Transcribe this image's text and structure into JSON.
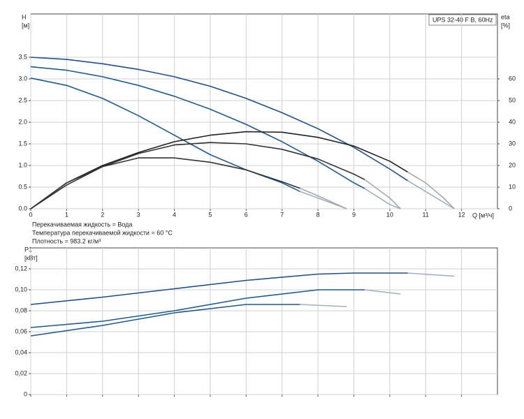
{
  "chart_data": [
    {
      "type": "line",
      "title": "UPS 32-40 F B, 60Hz",
      "ylabel": "H",
      "yunit": "[м]",
      "y2label": "eta",
      "y2unit": "[%]",
      "xlabel": "Q [м³/ч]",
      "notes": [
        "Перекачиваемая жидкость = Вода",
        "Температура перекачиваемой жидкости = 60 °C",
        "Плотность = 983.2 кг/м³"
      ],
      "xlim": [
        0,
        13
      ],
      "xticks": [
        0,
        1,
        2,
        3,
        4,
        5,
        6,
        7,
        8,
        9,
        10,
        11,
        12
      ],
      "ylim": [
        0,
        4.5
      ],
      "yticks": [
        {
          "value": 0,
          "label": "0.0"
        },
        0.5,
        {
          "value": 1,
          "label": "1.0"
        },
        1.5,
        {
          "value": 2,
          "label": "2.0"
        },
        2.5,
        {
          "value": 3,
          "label": "3.0"
        },
        3.5
      ],
      "y2lim": [
        0,
        90
      ],
      "y2ticks": [
        0,
        10,
        20,
        30,
        40,
        50,
        60
      ],
      "grid": true,
      "series": [
        {
          "color": "#1d4f8f",
          "x": [
            0,
            1,
            2,
            3,
            4,
            5,
            6,
            7,
            8,
            9,
            10,
            10.5
          ],
          "values": [
            3.5,
            3.45,
            3.35,
            3.22,
            3.05,
            2.83,
            2.55,
            2.22,
            1.85,
            1.42,
            0.92,
            0.65
          ]
        },
        {
          "color": "#9fb0c4",
          "x": [
            10.5,
            11,
            11.5,
            11.8
          ],
          "values": [
            0.65,
            0.4,
            0.15,
            0
          ]
        },
        {
          "color": "#1d5a95",
          "x": [
            0,
            1,
            2,
            3,
            4,
            5,
            6,
            7,
            8,
            9,
            9.3
          ],
          "values": [
            3.28,
            3.2,
            3.05,
            2.85,
            2.6,
            2.3,
            1.95,
            1.55,
            1.1,
            0.6,
            0.47
          ]
        },
        {
          "color": "#9fb0c4",
          "x": [
            9.3,
            10,
            10.3
          ],
          "values": [
            0.47,
            0.1,
            0
          ]
        },
        {
          "color": "#1d5a95",
          "x": [
            0,
            1,
            2,
            3,
            4,
            5,
            6,
            7,
            7.5
          ],
          "values": [
            3.02,
            2.85,
            2.55,
            2.15,
            1.7,
            1.25,
            0.9,
            0.6,
            0.4
          ]
        },
        {
          "color": "#9fb0c4",
          "x": [
            7.5,
            8,
            8.8
          ],
          "values": [
            0.4,
            0.25,
            0
          ]
        },
        {
          "color": "#222222",
          "axis": "y2",
          "x": [
            0,
            1,
            2,
            3,
            4,
            5,
            6,
            7,
            8,
            9,
            10,
            10.5
          ],
          "values": [
            0,
            12,
            20,
            26,
            31,
            34,
            35.6,
            35.4,
            33,
            29,
            22,
            17
          ]
        },
        {
          "color": "#a8a8a8",
          "axis": "y2",
          "x": [
            10.5,
            11,
            11.5,
            11.8
          ],
          "values": [
            17,
            12,
            5,
            0
          ]
        },
        {
          "color": "#333333",
          "axis": "y2",
          "x": [
            0,
            1,
            2,
            3,
            4,
            5,
            6,
            7,
            8,
            9,
            9.3
          ],
          "values": [
            0,
            11,
            19.5,
            25.5,
            29.5,
            30.6,
            30,
            27.5,
            23,
            16,
            13.5
          ]
        },
        {
          "color": "#a8a8a8",
          "axis": "y2",
          "x": [
            9.3,
            10,
            10.3
          ],
          "values": [
            13.5,
            5,
            0
          ]
        },
        {
          "color": "#333333",
          "axis": "y2",
          "x": [
            0,
            1,
            2,
            3,
            4,
            5,
            6,
            7,
            7.5
          ],
          "values": [
            0,
            12,
            19.5,
            23.5,
            23.5,
            21.5,
            18,
            12.5,
            9.5
          ]
        },
        {
          "color": "#a8a8a8",
          "axis": "y2",
          "x": [
            7.5,
            8,
            8.8
          ],
          "values": [
            9.5,
            6,
            0
          ]
        }
      ]
    },
    {
      "type": "line",
      "ylabel": "P1",
      "yunit": "[кВт]",
      "ylim": [
        0,
        0.14
      ],
      "yticks": [
        0,
        {
          "value": 0.02,
          "label": "0,02"
        },
        {
          "value": 0.04,
          "label": "0,04"
        },
        {
          "value": 0.06,
          "label": "0,06"
        },
        {
          "value": 0.08,
          "label": "0,08"
        },
        {
          "value": 0.1,
          "label": "0,10"
        },
        {
          "value": 0.12,
          "label": "0,12"
        }
      ],
      "grid": true,
      "series": [
        {
          "color": "#1d4f8f",
          "x": [
            0,
            2,
            4,
            6,
            8,
            9,
            10.5
          ],
          "values": [
            0.086,
            0.093,
            0.101,
            0.109,
            0.115,
            0.116,
            0.116
          ]
        },
        {
          "color": "#9fb0c4",
          "x": [
            10.5,
            11.8
          ],
          "values": [
            0.116,
            0.113
          ]
        },
        {
          "color": "#1d5a95",
          "x": [
            0,
            2,
            4,
            6,
            8,
            9.3
          ],
          "values": [
            0.064,
            0.07,
            0.08,
            0.092,
            0.1,
            0.1
          ]
        },
        {
          "color": "#9fb0c4",
          "x": [
            9.3,
            10.3
          ],
          "values": [
            0.1,
            0.096
          ]
        },
        {
          "color": "#1d5a95",
          "x": [
            0,
            2,
            4,
            6,
            7.5
          ],
          "values": [
            0.056,
            0.066,
            0.078,
            0.086,
            0.086
          ]
        },
        {
          "color": "#9fb0c4",
          "x": [
            7.5,
            8.8
          ],
          "values": [
            0.086,
            0.084
          ]
        }
      ]
    }
  ]
}
